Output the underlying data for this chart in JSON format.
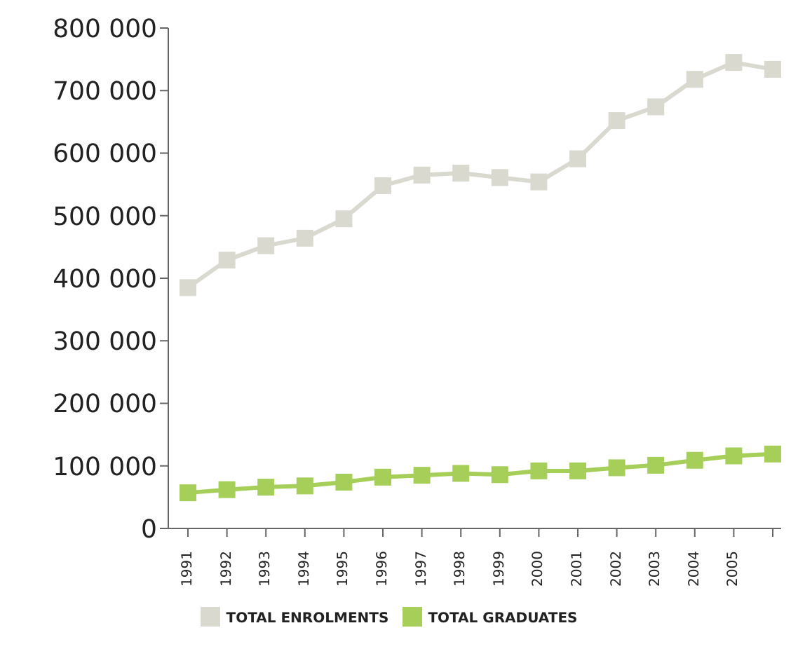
{
  "chart_data": {
    "type": "line",
    "categories": [
      "1991",
      "1992",
      "1993",
      "1994",
      "1995",
      "1996",
      "1997",
      "1998",
      "1999",
      "2000",
      "2001",
      "2002",
      "2003",
      "2004",
      "2005",
      null
    ],
    "series": [
      {
        "name": "TOTAL ENROLMENTS",
        "color": "#d9d9d0",
        "values": [
          385000,
          429000,
          452000,
          464000,
          495000,
          548000,
          565000,
          568000,
          561000,
          554000,
          591000,
          652000,
          674000,
          718000,
          745000,
          734000
        ]
      },
      {
        "name": "TOTAL GRADUATES",
        "color": "#a6cf5a",
        "values": [
          57000,
          62000,
          66000,
          68000,
          74000,
          82000,
          85000,
          88000,
          86000,
          92000,
          92000,
          97000,
          101000,
          109000,
          116000,
          119000
        ]
      }
    ],
    "ylim": [
      0,
      800000
    ],
    "yticks": [
      0,
      {
        "value": 100000,
        "label": "100 000"
      },
      {
        "value": 200000,
        "label": "200 000"
      },
      {
        "value": 300000,
        "label": "300 000"
      },
      {
        "value": 400000,
        "label": "400 000"
      },
      {
        "value": 500000,
        "label": "500 000"
      },
      {
        "value": 600000,
        "label": "600 000"
      },
      {
        "value": 700000,
        "label": "700 000"
      },
      {
        "value": 800000,
        "label": "800 000"
      }
    ],
    "grid": false,
    "legend": "bottom",
    "marker": "square",
    "line_style": "solid"
  }
}
